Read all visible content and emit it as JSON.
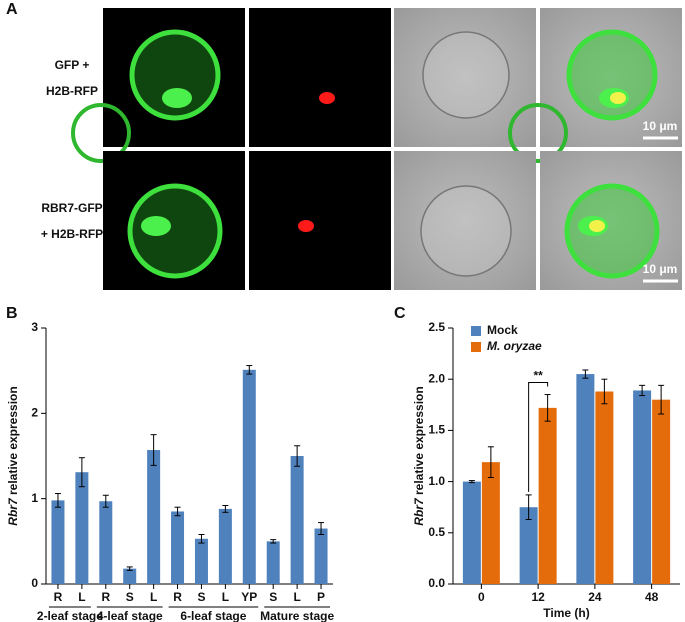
{
  "panel_a": {
    "panel_label": "A",
    "rows": [
      {
        "label": [
          "GFP +",
          "H2B-RFP"
        ],
        "scale_bar": "10 μm"
      },
      {
        "label": [
          "RBR7-GFP",
          "+ H2B-RFP"
        ],
        "scale_bar": "10 μm"
      }
    ]
  },
  "chart_data": [
    {
      "type": "bar",
      "panel_label": "B",
      "y_label": [
        "Rbr7",
        " relative expression"
      ],
      "categories": [
        "R",
        "L",
        "R",
        "S",
        "L",
        "R",
        "S",
        "L",
        "YP",
        "S",
        "L",
        "P"
      ],
      "category_groups": [
        "2-leaf stage",
        "2-leaf stage",
        "4-leaf stage",
        "4-leaf stage",
        "4-leaf stage",
        "6-leaf stage",
        "6-leaf stage",
        "6-leaf stage",
        "6-leaf stage",
        "Mature stage",
        "Mature stage",
        "Mature stage"
      ],
      "values": [
        0.98,
        1.31,
        0.97,
        0.18,
        1.57,
        0.85,
        0.53,
        0.88,
        2.51,
        0.5,
        1.5,
        0.65
      ],
      "errors": [
        0.08,
        0.17,
        0.07,
        0.02,
        0.18,
        0.05,
        0.05,
        0.04,
        0.05,
        0.02,
        0.12,
        0.07
      ],
      "color": "#4f81bd",
      "ylim": [
        0,
        3
      ],
      "yticks": [
        0,
        1,
        2,
        3
      ]
    },
    {
      "type": "grouped-bar",
      "panel_label": "C",
      "y_label": [
        "Rbr7",
        " relative expression"
      ],
      "x_label": "Time (h)",
      "categories": [
        "0",
        "12",
        "24",
        "48"
      ],
      "series": [
        {
          "name": "Mock",
          "color": "#4f81bd",
          "values": [
            1.0,
            0.75,
            2.05,
            1.89
          ],
          "errors": [
            0.01,
            0.12,
            0.04,
            0.05
          ]
        },
        {
          "name": "M. oryzae",
          "color": "#e46c0a",
          "values": [
            1.19,
            1.72,
            1.88,
            1.8
          ],
          "errors": [
            0.15,
            0.13,
            0.12,
            0.14
          ]
        }
      ],
      "annotation": "**",
      "ylim": [
        0,
        2.5
      ],
      "yticks": [
        {
          "value": 0,
          "label": "0.0"
        },
        0.5,
        {
          "value": 1,
          "label": "1.0"
        },
        1.5,
        {
          "value": 2,
          "label": "2.0"
        },
        2.5
      ]
    }
  ]
}
